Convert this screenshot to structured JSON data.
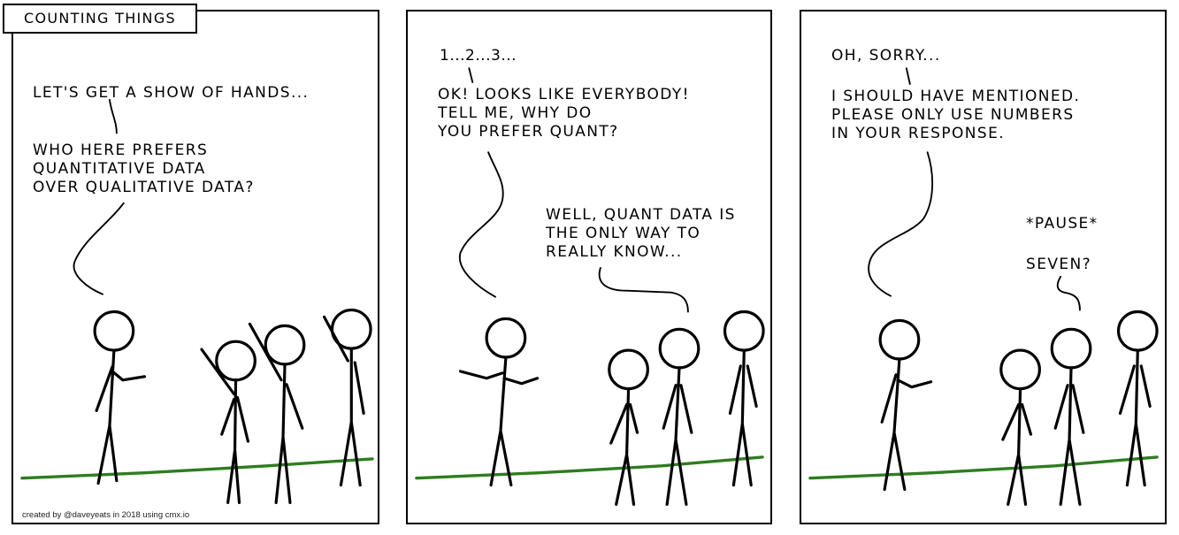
{
  "comic": {
    "title": "COUNTING THINGS",
    "credit": "created by @daveyeats in 2018 using cmx.io",
    "colors": {
      "ground": "#2e7d1e",
      "ink": "#000000",
      "background": "#ffffff"
    }
  },
  "panels": [
    {
      "speech": [
        "LET'S GET A SHOW OF HANDS...",
        "WHO HERE PREFERS\nQUANTITATIVE DATA\nOVER QUALITATIVE DATA?"
      ]
    },
    {
      "speech": [
        "1...2...3...",
        "OK! LOOKS LIKE EVERYBODY!\nTELL ME, WHY DO\nYOU PREFER QUANT?",
        "WELL, QUANT DATA IS\nTHE ONLY WAY TO\nREALLY KNOW..."
      ]
    },
    {
      "speech": [
        "OH, SORRY...",
        "I SHOULD HAVE MENTIONED.\nPLEASE ONLY USE NUMBERS\nIN YOUR RESPONSE.",
        "*PAUSE*",
        "SEVEN?"
      ]
    }
  ]
}
